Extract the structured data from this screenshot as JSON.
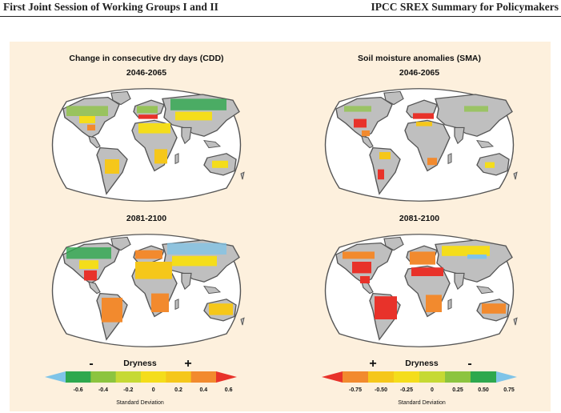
{
  "header": {
    "left": "First Joint Session of Working Groups I and II",
    "right": "IPCC SREX Summary for Policymakers"
  },
  "panels": {
    "cdd": {
      "title": "Change in consecutive dry days (CDD)",
      "period1": "2046-2065",
      "period2": "2081-2100"
    },
    "sma": {
      "title": "Soil moisture anomalies (SMA)",
      "period1": "2046-2065",
      "period2": "2081-2100"
    }
  },
  "legends": {
    "cdd": {
      "minus": "-",
      "plus": "+",
      "label": "Dryness",
      "ticks": [
        "-0.6",
        "-0.4",
        "-0.2",
        "0",
        "0.2",
        "0.4",
        "0.6"
      ],
      "unit": "Standard Deviation",
      "colors": [
        "#7fc4e8",
        "#2ea84e",
        "#8cc43f",
        "#c6d934",
        "#f4dd1b",
        "#f5c71a",
        "#f28a2e",
        "#e8322a"
      ]
    },
    "sma": {
      "plus": "+",
      "minus": "-",
      "label": "Dryness",
      "ticks": [
        "-0.75",
        "-0.50",
        "-0.25",
        "0",
        "0.25",
        "0.50",
        "0.75"
      ],
      "unit": "Standard Deviation",
      "colors": [
        "#e8322a",
        "#f28a2e",
        "#f5c71a",
        "#f4dd1b",
        "#c6d934",
        "#8cc43f",
        "#2ea84e",
        "#7fc4e8"
      ]
    }
  }
}
